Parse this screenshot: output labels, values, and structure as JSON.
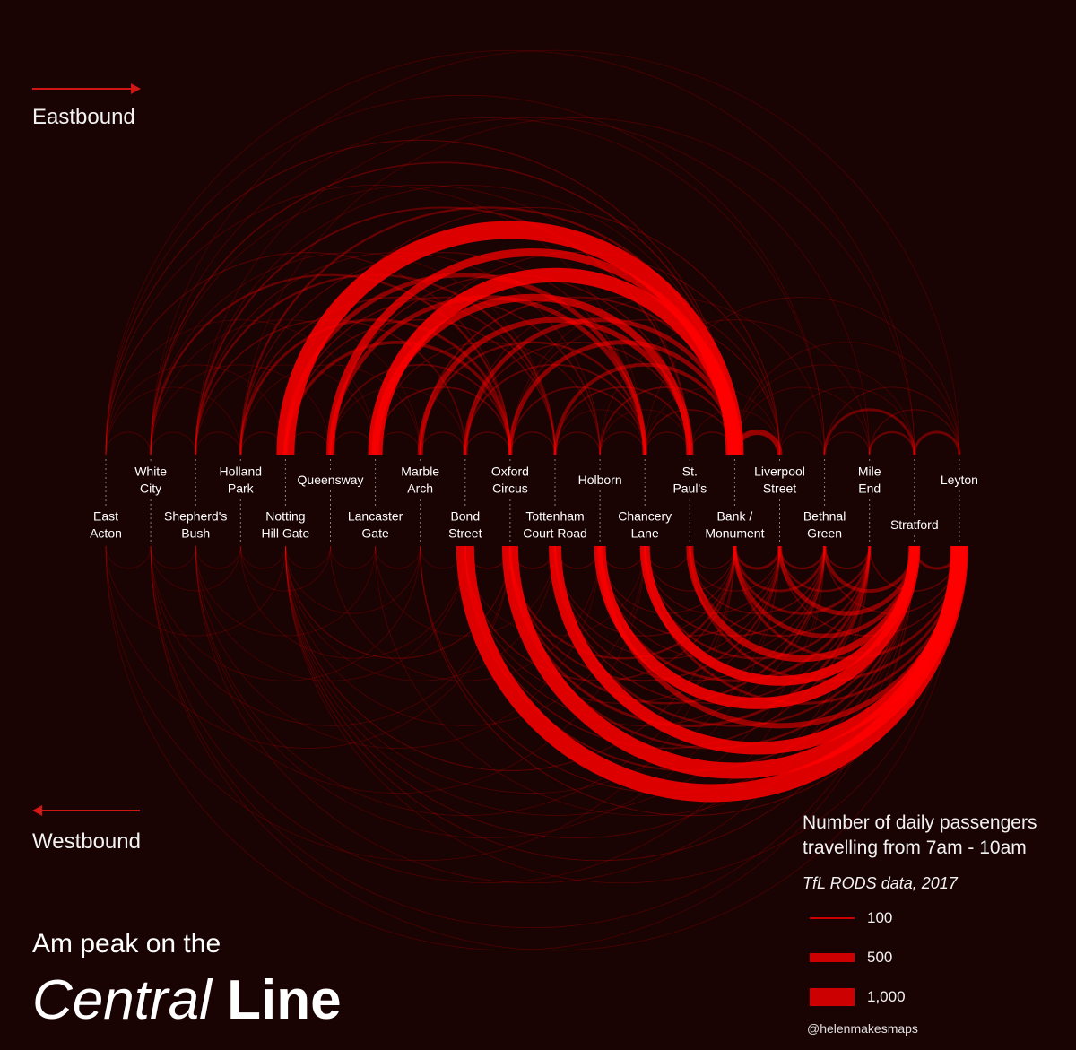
{
  "directions": {
    "east": "Eastbound",
    "west": "Westbound"
  },
  "title": {
    "line1": "Am peak on the",
    "line2_italic": "Central",
    "line2_bold": "Line"
  },
  "legend": {
    "title_line1": "Number of daily passengers",
    "title_line2": "travelling from 7am - 10am",
    "source": "TfL RODS data, 2017",
    "items": [
      {
        "label": "100",
        "value": 100
      },
      {
        "label": "500",
        "value": 500
      },
      {
        "label": "1,000",
        "value": 1000
      }
    ]
  },
  "credit": "@helenmakesmaps",
  "colors": {
    "background": "#1a0303",
    "arc": "#ff0000",
    "legend_swatch": "#cc0000",
    "arrow": "#d01515"
  },
  "chart_data": {
    "type": "arc",
    "stations": [
      {
        "name": "East Acton",
        "lines": [
          "East",
          "Acton"
        ]
      },
      {
        "name": "White City",
        "lines": [
          "White",
          "City"
        ]
      },
      {
        "name": "Shepherd's Bush",
        "lines": [
          "Shepherd's",
          "Bush"
        ]
      },
      {
        "name": "Holland Park",
        "lines": [
          "Holland",
          "Park"
        ]
      },
      {
        "name": "Notting Hill Gate",
        "lines": [
          "Notting",
          "Hill Gate"
        ]
      },
      {
        "name": "Queensway",
        "lines": [
          "Queensway"
        ]
      },
      {
        "name": "Lancaster Gate",
        "lines": [
          "Lancaster",
          "Gate"
        ]
      },
      {
        "name": "Marble Arch",
        "lines": [
          "Marble",
          "Arch"
        ]
      },
      {
        "name": "Bond Street",
        "lines": [
          "Bond",
          "Street"
        ]
      },
      {
        "name": "Oxford Circus",
        "lines": [
          "Oxford",
          "Circus"
        ]
      },
      {
        "name": "Tottenham Court Road",
        "lines": [
          "Tottenham",
          "Court Road"
        ]
      },
      {
        "name": "Holborn",
        "lines": [
          "Holborn"
        ]
      },
      {
        "name": "Chancery Lane",
        "lines": [
          "Chancery",
          "Lane"
        ]
      },
      {
        "name": "St. Paul's",
        "lines": [
          "St.",
          "Paul's"
        ]
      },
      {
        "name": "Bank / Monument",
        "lines": [
          "Bank /",
          "Monument"
        ]
      },
      {
        "name": "Liverpool Street",
        "lines": [
          "Liverpool",
          "Street"
        ]
      },
      {
        "name": "Bethnal Green",
        "lines": [
          "Bethnal",
          "Green"
        ]
      },
      {
        "name": "Mile End",
        "lines": [
          "Mile",
          "End"
        ]
      },
      {
        "name": "Stratford",
        "lines": [
          "Stratford"
        ]
      },
      {
        "name": "Leyton",
        "lines": [
          "Leyton"
        ]
      }
    ],
    "eastbound_flows": [
      {
        "from": 4,
        "to": 14,
        "value": 1000
      },
      {
        "from": 6,
        "to": 14,
        "value": 800
      },
      {
        "from": 5,
        "to": 14,
        "value": 450
      },
      {
        "from": 6,
        "to": 13,
        "value": 400
      },
      {
        "from": 7,
        "to": 13,
        "value": 300
      },
      {
        "from": 5,
        "to": 12,
        "value": 250
      },
      {
        "from": 4,
        "to": 12,
        "value": 250
      },
      {
        "from": 8,
        "to": 14,
        "value": 250
      },
      {
        "from": 9,
        "to": 14,
        "value": 250
      },
      {
        "from": 10,
        "to": 14,
        "value": 200
      },
      {
        "from": 4,
        "to": 9,
        "value": 180
      },
      {
        "from": 3,
        "to": 9,
        "value": 150
      },
      {
        "from": 14,
        "to": 15,
        "value": 300
      },
      {
        "from": 16,
        "to": 18,
        "value": 150
      },
      {
        "from": 17,
        "to": 18,
        "value": 120
      },
      {
        "from": 18,
        "to": 19,
        "value": 150
      },
      {
        "from": 1,
        "to": 9,
        "value": 120
      },
      {
        "from": 2,
        "to": 10,
        "value": 120
      },
      {
        "from": 3,
        "to": 14,
        "value": 120
      },
      {
        "from": 2,
        "to": 13,
        "value": 100
      },
      {
        "from": 0,
        "to": 9,
        "value": 60
      },
      {
        "from": 1,
        "to": 14,
        "value": 80
      },
      {
        "from": 0,
        "to": 14,
        "value": 60
      },
      {
        "from": 2,
        "to": 8,
        "value": 80
      },
      {
        "from": 3,
        "to": 10,
        "value": 80
      },
      {
        "from": 5,
        "to": 9,
        "value": 90
      },
      {
        "from": 6,
        "to": 9,
        "value": 90
      },
      {
        "from": 7,
        "to": 12,
        "value": 120
      },
      {
        "from": 8,
        "to": 12,
        "value": 100
      },
      {
        "from": 9,
        "to": 12,
        "value": 90
      },
      {
        "from": 10,
        "to": 13,
        "value": 90
      },
      {
        "from": 11,
        "to": 14,
        "value": 100
      },
      {
        "from": 12,
        "to": 14,
        "value": 80
      },
      {
        "from": 0,
        "to": 1,
        "value": 40
      },
      {
        "from": 1,
        "to": 2,
        "value": 40
      },
      {
        "from": 2,
        "to": 3,
        "value": 40
      },
      {
        "from": 3,
        "to": 4,
        "value": 50
      },
      {
        "from": 4,
        "to": 5,
        "value": 50
      },
      {
        "from": 5,
        "to": 6,
        "value": 50
      },
      {
        "from": 6,
        "to": 7,
        "value": 50
      },
      {
        "from": 7,
        "to": 8,
        "value": 60
      },
      {
        "from": 8,
        "to": 9,
        "value": 70
      },
      {
        "from": 9,
        "to": 10,
        "value": 70
      },
      {
        "from": 10,
        "to": 11,
        "value": 60
      },
      {
        "from": 11,
        "to": 12,
        "value": 60
      },
      {
        "from": 12,
        "to": 13,
        "value": 60
      },
      {
        "from": 13,
        "to": 14,
        "value": 70
      },
      {
        "from": 15,
        "to": 16,
        "value": 40
      },
      {
        "from": 16,
        "to": 17,
        "value": 60
      },
      {
        "from": 17,
        "to": 19,
        "value": 60
      },
      {
        "from": 16,
        "to": 19,
        "value": 50
      },
      {
        "from": 12,
        "to": 19,
        "value": 40
      },
      {
        "from": 14,
        "to": 19,
        "value": 40
      },
      {
        "from": 11,
        "to": 17,
        "value": 40
      },
      {
        "from": 9,
        "to": 16,
        "value": 40
      },
      {
        "from": 9,
        "to": 15,
        "value": 60
      },
      {
        "from": 8,
        "to": 15,
        "value": 50
      },
      {
        "from": 6,
        "to": 15,
        "value": 60
      },
      {
        "from": 4,
        "to": 15,
        "value": 60
      },
      {
        "from": 1,
        "to": 13,
        "value": 40
      },
      {
        "from": 0,
        "to": 12,
        "value": 40
      },
      {
        "from": 3,
        "to": 12,
        "value": 60
      },
      {
        "from": 2,
        "to": 11,
        "value": 50
      },
      {
        "from": 2,
        "to": 14,
        "value": 40
      },
      {
        "from": 1,
        "to": 10,
        "value": 40
      },
      {
        "from": 4,
        "to": 11,
        "value": 80
      },
      {
        "from": 4,
        "to": 10,
        "value": 80
      },
      {
        "from": 5,
        "to": 13,
        "value": 80
      },
      {
        "from": 7,
        "to": 14,
        "value": 100
      },
      {
        "from": 8,
        "to": 13,
        "value": 80
      },
      {
        "from": 6,
        "to": 11,
        "value": 60
      },
      {
        "from": 3,
        "to": 7,
        "value": 40
      },
      {
        "from": 5,
        "to": 8,
        "value": 40
      },
      {
        "from": 10,
        "to": 12,
        "value": 40
      },
      {
        "from": 11,
        "to": 13,
        "value": 40
      },
      {
        "from": 13,
        "to": 15,
        "value": 30
      },
      {
        "from": 12,
        "to": 15,
        "value": 30
      },
      {
        "from": 15,
        "to": 18,
        "value": 40
      },
      {
        "from": 14,
        "to": 18,
        "value": 30
      },
      {
        "from": 14,
        "to": 17,
        "value": 30
      },
      {
        "from": 0,
        "to": 6,
        "value": 30
      },
      {
        "from": 1,
        "to": 7,
        "value": 30
      },
      {
        "from": 0,
        "to": 4,
        "value": 30
      },
      {
        "from": 2,
        "to": 6,
        "value": 30
      },
      {
        "from": 1,
        "to": 5,
        "value": 30
      },
      {
        "from": 0,
        "to": 3,
        "value": 30
      },
      {
        "from": 0,
        "to": 18,
        "value": 25
      },
      {
        "from": 1,
        "to": 16,
        "value": 25
      },
      {
        "from": 0,
        "to": 16,
        "value": 25
      },
      {
        "from": 2,
        "to": 17,
        "value": 25
      },
      {
        "from": 3,
        "to": 18,
        "value": 25
      },
      {
        "from": 1,
        "to": 19,
        "value": 20
      }
    ],
    "westbound_flows": [
      {
        "from": 19,
        "to": 8,
        "value": 1000
      },
      {
        "from": 19,
        "to": 9,
        "value": 900
      },
      {
        "from": 19,
        "to": 10,
        "value": 700
      },
      {
        "from": 18,
        "to": 11,
        "value": 650
      },
      {
        "from": 18,
        "to": 12,
        "value": 550
      },
      {
        "from": 18,
        "to": 13,
        "value": 400
      },
      {
        "from": 19,
        "to": 11,
        "value": 300
      },
      {
        "from": 18,
        "to": 14,
        "value": 250
      },
      {
        "from": 18,
        "to": 15,
        "value": 250
      },
      {
        "from": 18,
        "to": 16,
        "value": 200
      },
      {
        "from": 19,
        "to": 14,
        "value": 150
      },
      {
        "from": 17,
        "to": 11,
        "value": 150
      },
      {
        "from": 17,
        "to": 14,
        "value": 150
      },
      {
        "from": 16,
        "to": 14,
        "value": 150
      },
      {
        "from": 15,
        "to": 14,
        "value": 150
      },
      {
        "from": 17,
        "to": 15,
        "value": 120
      },
      {
        "from": 16,
        "to": 15,
        "value": 120
      },
      {
        "from": 17,
        "to": 16,
        "value": 100
      },
      {
        "from": 16,
        "to": 12,
        "value": 100
      },
      {
        "from": 16,
        "to": 9,
        "value": 120
      },
      {
        "from": 17,
        "to": 9,
        "value": 150
      },
      {
        "from": 17,
        "to": 12,
        "value": 120
      },
      {
        "from": 15,
        "to": 9,
        "value": 100
      },
      {
        "from": 15,
        "to": 11,
        "value": 80
      },
      {
        "from": 14,
        "to": 9,
        "value": 120
      },
      {
        "from": 14,
        "to": 8,
        "value": 80
      },
      {
        "from": 19,
        "to": 12,
        "value": 150
      },
      {
        "from": 19,
        "to": 13,
        "value": 150
      },
      {
        "from": 19,
        "to": 18,
        "value": 150
      },
      {
        "from": 19,
        "to": 17,
        "value": 80
      },
      {
        "from": 19,
        "to": 16,
        "value": 80
      },
      {
        "from": 19,
        "to": 15,
        "value": 80
      },
      {
        "from": 18,
        "to": 10,
        "value": 120
      },
      {
        "from": 18,
        "to": 9,
        "value": 120
      },
      {
        "from": 18,
        "to": 8,
        "value": 100
      },
      {
        "from": 18,
        "to": 7,
        "value": 60
      },
      {
        "from": 18,
        "to": 6,
        "value": 40
      },
      {
        "from": 18,
        "to": 4,
        "value": 50
      },
      {
        "from": 18,
        "to": 1,
        "value": 40
      },
      {
        "from": 18,
        "to": 0,
        "value": 30
      },
      {
        "from": 19,
        "to": 7,
        "value": 60
      },
      {
        "from": 19,
        "to": 4,
        "value": 40
      },
      {
        "from": 19,
        "to": 1,
        "value": 30
      },
      {
        "from": 17,
        "to": 4,
        "value": 50
      },
      {
        "from": 17,
        "to": 2,
        "value": 40
      },
      {
        "from": 16,
        "to": 4,
        "value": 40
      },
      {
        "from": 16,
        "to": 1,
        "value": 40
      },
      {
        "from": 15,
        "to": 4,
        "value": 40
      },
      {
        "from": 15,
        "to": 2,
        "value": 30
      },
      {
        "from": 14,
        "to": 4,
        "value": 60
      },
      {
        "from": 14,
        "to": 2,
        "value": 40
      },
      {
        "from": 14,
        "to": 0,
        "value": 30
      },
      {
        "from": 12,
        "to": 4,
        "value": 40
      },
      {
        "from": 12,
        "to": 1,
        "value": 30
      },
      {
        "from": 11,
        "to": 2,
        "value": 30
      },
      {
        "from": 11,
        "to": 5,
        "value": 40
      },
      {
        "from": 10,
        "to": 4,
        "value": 40
      },
      {
        "from": 10,
        "to": 6,
        "value": 40
      },
      {
        "from": 9,
        "to": 4,
        "value": 60
      },
      {
        "from": 9,
        "to": 1,
        "value": 40
      },
      {
        "from": 9,
        "to": 0,
        "value": 30
      },
      {
        "from": 8,
        "to": 3,
        "value": 40
      },
      {
        "from": 8,
        "to": 2,
        "value": 30
      },
      {
        "from": 7,
        "to": 4,
        "value": 40
      },
      {
        "from": 7,
        "to": 1,
        "value": 30
      },
      {
        "from": 6,
        "to": 2,
        "value": 30
      },
      {
        "from": 5,
        "to": 3,
        "value": 30
      },
      {
        "from": 4,
        "to": 0,
        "value": 25
      },
      {
        "from": 3,
        "to": 1,
        "value": 25
      },
      {
        "from": 13,
        "to": 12,
        "value": 60
      },
      {
        "from": 12,
        "to": 11,
        "value": 60
      },
      {
        "from": 11,
        "to": 10,
        "value": 60
      },
      {
        "from": 10,
        "to": 9,
        "value": 60
      },
      {
        "from": 9,
        "to": 8,
        "value": 60
      },
      {
        "from": 14,
        "to": 13,
        "value": 60
      },
      {
        "from": 15,
        "to": 13,
        "value": 60
      },
      {
        "from": 16,
        "to": 13,
        "value": 80
      },
      {
        "from": 17,
        "to": 13,
        "value": 100
      },
      {
        "from": 17,
        "to": 10,
        "value": 80
      },
      {
        "from": 16,
        "to": 10,
        "value": 80
      },
      {
        "from": 15,
        "to": 10,
        "value": 60
      },
      {
        "from": 14,
        "to": 11,
        "value": 60
      },
      {
        "from": 14,
        "to": 10,
        "value": 60
      },
      {
        "from": 14,
        "to": 12,
        "value": 60
      },
      {
        "from": 15,
        "to": 12,
        "value": 60
      },
      {
        "from": 16,
        "to": 11,
        "value": 60
      },
      {
        "from": 17,
        "to": 8,
        "value": 80
      },
      {
        "from": 16,
        "to": 8,
        "value": 60
      },
      {
        "from": 15,
        "to": 8,
        "value": 60
      },
      {
        "from": 12,
        "to": 8,
        "value": 40
      },
      {
        "from": 8,
        "to": 7,
        "value": 30
      },
      {
        "from": 7,
        "to": 6,
        "value": 30
      },
      {
        "from": 6,
        "to": 5,
        "value": 30
      },
      {
        "from": 5,
        "to": 4,
        "value": 30
      },
      {
        "from": 4,
        "to": 3,
        "value": 30
      },
      {
        "from": 3,
        "to": 2,
        "value": 30
      },
      {
        "from": 2,
        "to": 1,
        "value": 30
      },
      {
        "from": 1,
        "to": 0,
        "value": 30
      }
    ]
  }
}
